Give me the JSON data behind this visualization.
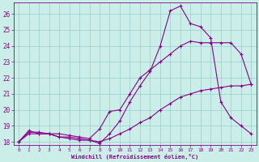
{
  "xlabel": "Windchill (Refroidissement éolien,°C)",
  "bg_color": "#cceee8",
  "line_color": "#880088",
  "grid_color": "#99cccc",
  "xlim": [
    -0.5,
    23.5
  ],
  "ylim": [
    17.8,
    26.7
  ],
  "xticks": [
    0,
    1,
    2,
    3,
    4,
    5,
    6,
    7,
    8,
    9,
    10,
    11,
    12,
    13,
    14,
    15,
    16,
    17,
    18,
    19,
    20,
    21,
    22,
    23
  ],
  "yticks": [
    18,
    19,
    20,
    21,
    22,
    23,
    24,
    25,
    26
  ],
  "line1_x": [
    0,
    1,
    2,
    3,
    4,
    5,
    6,
    7,
    8,
    9,
    10,
    11,
    12,
    13,
    14,
    15,
    16,
    17,
    18,
    19,
    20,
    21,
    22,
    23
  ],
  "line1_y": [
    18.0,
    18.6,
    18.6,
    18.5,
    18.5,
    18.4,
    18.3,
    18.2,
    18.8,
    19.9,
    20.0,
    21.0,
    22.0,
    22.5,
    23.0,
    23.5,
    24.0,
    24.3,
    24.2,
    24.2,
    24.2,
    24.2,
    23.5,
    21.6
  ],
  "line2_x": [
    0,
    1,
    2,
    3,
    4,
    5,
    6,
    7,
    8,
    9,
    10,
    11,
    12,
    13,
    14,
    15,
    16,
    17,
    18,
    19,
    20,
    21,
    22,
    23
  ],
  "line2_y": [
    18.0,
    18.7,
    18.5,
    18.5,
    18.3,
    18.2,
    18.1,
    18.1,
    17.9,
    18.5,
    19.3,
    20.5,
    21.5,
    22.4,
    24.0,
    26.2,
    26.5,
    25.4,
    25.2,
    24.5,
    20.5,
    19.5,
    19.0,
    18.5
  ],
  "line3_x": [
    0,
    1,
    2,
    3,
    4,
    5,
    6,
    7,
    8,
    9,
    10,
    11,
    12,
    13,
    14,
    15,
    16,
    17,
    18,
    19,
    20,
    21,
    22,
    23
  ],
  "line3_y": [
    18.0,
    18.5,
    18.5,
    18.5,
    18.3,
    18.3,
    18.2,
    18.1,
    18.0,
    18.2,
    18.5,
    18.8,
    19.2,
    19.5,
    20.0,
    20.4,
    20.8,
    21.0,
    21.2,
    21.3,
    21.4,
    21.5,
    21.5,
    21.6
  ]
}
